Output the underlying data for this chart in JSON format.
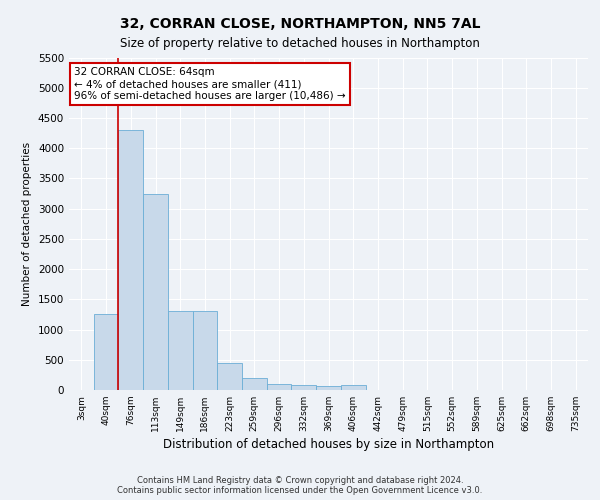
{
  "title_line1": "32, CORRAN CLOSE, NORTHAMPTON, NN5 7AL",
  "title_line2": "Size of property relative to detached houses in Northampton",
  "xlabel": "Distribution of detached houses by size in Northampton",
  "ylabel": "Number of detached properties",
  "bin_labels": [
    "3sqm",
    "40sqm",
    "76sqm",
    "113sqm",
    "149sqm",
    "186sqm",
    "223sqm",
    "259sqm",
    "296sqm",
    "332sqm",
    "369sqm",
    "406sqm",
    "442sqm",
    "479sqm",
    "515sqm",
    "552sqm",
    "589sqm",
    "625sqm",
    "662sqm",
    "698sqm",
    "735sqm"
  ],
  "bar_values": [
    0,
    1250,
    4300,
    3250,
    1300,
    1300,
    450,
    200,
    100,
    80,
    60,
    80,
    0,
    0,
    0,
    0,
    0,
    0,
    0,
    0,
    0
  ],
  "bar_color": "#c8d9ea",
  "bar_edgecolor": "#6baed6",
  "ylim": [
    0,
    5500
  ],
  "yticks": [
    0,
    500,
    1000,
    1500,
    2000,
    2500,
    3000,
    3500,
    4000,
    4500,
    5000,
    5500
  ],
  "annotation_line1": "32 CORRAN CLOSE: 64sqm",
  "annotation_line2": "← 4% of detached houses are smaller (411)",
  "annotation_line3": "96% of semi-detached houses are larger (10,486) →",
  "vline_color": "#cc0000",
  "annotation_box_edgecolor": "#cc0000",
  "footer_line1": "Contains HM Land Registry data © Crown copyright and database right 2024.",
  "footer_line2": "Contains public sector information licensed under the Open Government Licence v3.0.",
  "background_color": "#eef2f7",
  "plot_background": "#eef2f7",
  "grid_color": "#ffffff"
}
